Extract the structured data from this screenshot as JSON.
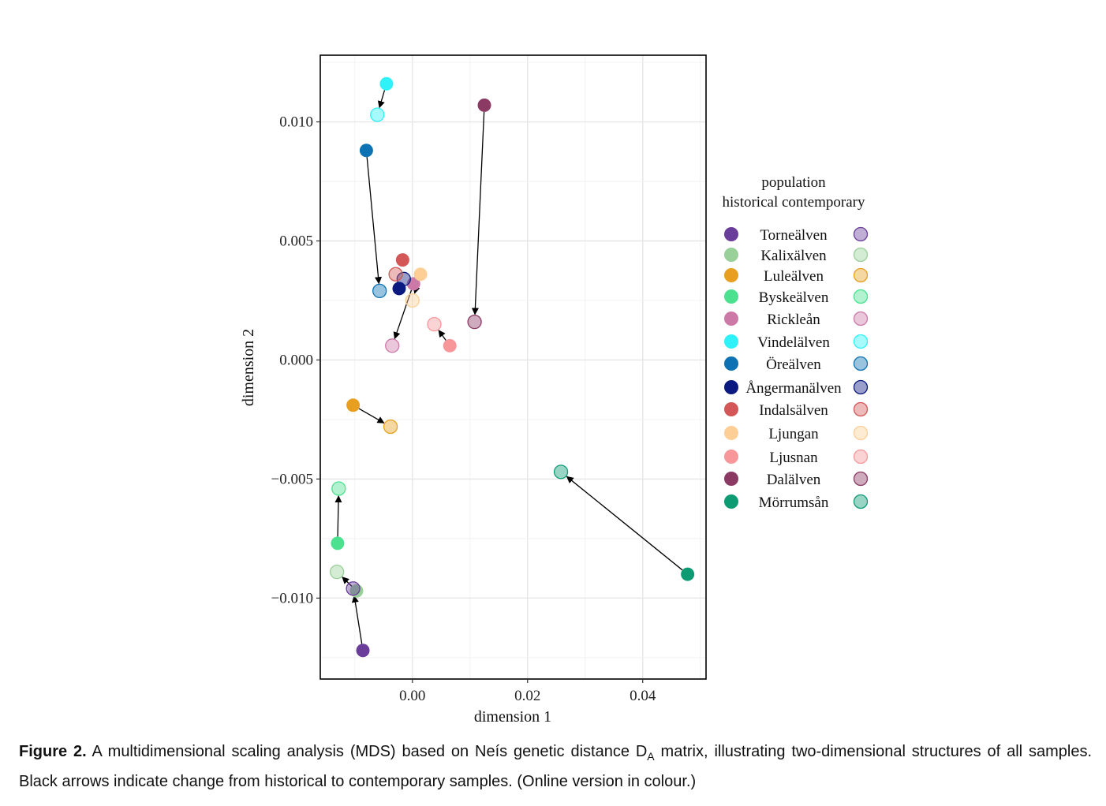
{
  "chart_data": {
    "type": "scatter",
    "xlabel": "dimension 1",
    "ylabel": "dimension 2",
    "xlim": [
      -0.016,
      0.051
    ],
    "ylim": [
      -0.0134,
      0.0128
    ],
    "xticks": [
      0.0,
      0.02,
      0.04
    ],
    "xtick_labels": [
      "0.00",
      "0.02",
      "0.04"
    ],
    "yticks": [
      -0.01,
      -0.005,
      0.0,
      0.005,
      0.01
    ],
    "ytick_labels": [
      "−0.010",
      "−0.005",
      "0.000",
      "0.005",
      "0.010"
    ],
    "grid": true,
    "legend": {
      "title_line1": "population",
      "title_line2": "historical contemporary",
      "placement": "right"
    },
    "series": [
      {
        "name": "Torneälven",
        "color": "#6a3d9a",
        "historical": [
          -0.0086,
          -0.0122
        ],
        "contemporary": [
          -0.0103,
          -0.0096
        ]
      },
      {
        "name": "Kalixälven",
        "color": "#99cf99",
        "historical": [
          -0.0097,
          -0.0097
        ],
        "contemporary": [
          -0.0131,
          -0.0089
        ]
      },
      {
        "name": "Luleälven",
        "color": "#e89f1f",
        "historical": [
          -0.0103,
          -0.0019
        ],
        "contemporary": [
          -0.0038,
          -0.0028
        ]
      },
      {
        "name": "Byskeälven",
        "color": "#4be18f",
        "historical": [
          -0.013,
          -0.0077
        ],
        "contemporary": [
          -0.0128,
          -0.0054
        ]
      },
      {
        "name": "Rickleån",
        "color": "#cc79a7",
        "historical": [
          0.0002,
          0.0032
        ],
        "contemporary": [
          -0.0035,
          0.0006
        ]
      },
      {
        "name": "Vindelälven",
        "color": "#2ef2f8",
        "historical": [
          -0.0045,
          0.0116
        ],
        "contemporary": [
          -0.0061,
          0.0103
        ]
      },
      {
        "name": "Öreälven",
        "color": "#0d72b3",
        "historical": [
          -0.008,
          0.0088
        ],
        "contemporary": [
          -0.0057,
          0.0029
        ]
      },
      {
        "name": "Ångermanälven",
        "color": "#0b1a80",
        "historical": [
          -0.0023,
          0.003
        ],
        "contemporary": [
          -0.0015,
          0.0034
        ]
      },
      {
        "name": "Indalsälven",
        "color": "#d35757",
        "historical": [
          -0.0017,
          0.0042
        ],
        "contemporary": [
          -0.0029,
          0.0036
        ]
      },
      {
        "name": "Ljungan",
        "color": "#fdcf96",
        "historical": [
          0.0014,
          0.0036
        ],
        "contemporary": [
          0.0,
          0.0025
        ]
      },
      {
        "name": "Ljusnan",
        "color": "#f7979a",
        "historical": [
          0.0065,
          0.0006
        ],
        "contemporary": [
          0.0038,
          0.0015
        ]
      },
      {
        "name": "Dalälven",
        "color": "#8a3a63",
        "historical": [
          0.0125,
          0.0107
        ],
        "contemporary": [
          0.0108,
          0.0016
        ]
      },
      {
        "name": "Mörrumsån",
        "color": "#0d9b74",
        "historical": [
          0.0478,
          -0.009
        ],
        "contemporary": [
          0.0258,
          -0.0047
        ]
      }
    ]
  },
  "caption": {
    "label": "Figure 2.",
    "text": "A multidimensional scaling analysis (MDS) based on Neís genetic distance D",
    "subscript": "A",
    "text_after": " matrix, illustrating two-dimensional structures of all samples. Black arrows indicate change from historical to contemporary samples. (Online version in colour.)"
  }
}
